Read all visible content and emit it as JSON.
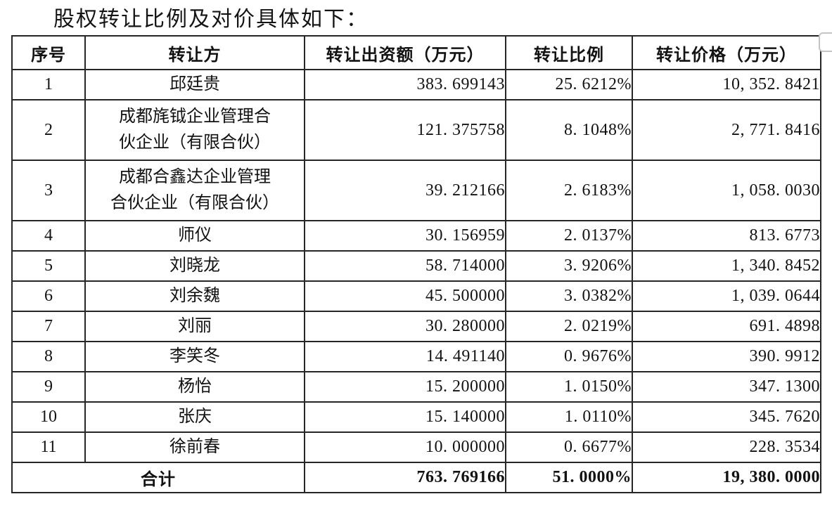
{
  "title": "股权转让比例及对价具体如下：",
  "table": {
    "columns": [
      "序号",
      "转让方",
      "转让出资额（万元）",
      "转让比例",
      "转让价格（万元）"
    ],
    "rows": [
      {
        "no": "1",
        "transferor": "邱廷贵",
        "amount": "383. 699143",
        "ratio": "25. 6212%",
        "price": "10, 352. 8421"
      },
      {
        "no": "2",
        "transferor": "成都旄钺企业管理合\n伙企业（有限合伙）",
        "amount": "121. 375758",
        "ratio": "8. 1048%",
        "price": "2, 771. 8416"
      },
      {
        "no": "3",
        "transferor": "成都合鑫达企业管理\n合伙企业（有限合伙）",
        "amount": "39. 212166",
        "ratio": "2. 6183%",
        "price": "1, 058. 0030"
      },
      {
        "no": "4",
        "transferor": "师仪",
        "amount": "30. 156959",
        "ratio": "2. 0137%",
        "price": "813. 6773"
      },
      {
        "no": "5",
        "transferor": "刘晓龙",
        "amount": "58. 714000",
        "ratio": "3. 9206%",
        "price": "1, 340. 8452"
      },
      {
        "no": "6",
        "transferor": "刘余魏",
        "amount": "45. 500000",
        "ratio": "3. 0382%",
        "price": "1, 039. 0644"
      },
      {
        "no": "7",
        "transferor": "刘丽",
        "amount": "30. 280000",
        "ratio": "2. 0219%",
        "price": "691. 4898"
      },
      {
        "no": "8",
        "transferor": "李笑冬",
        "amount": "14. 491140",
        "ratio": "0. 9676%",
        "price": "390. 9912"
      },
      {
        "no": "9",
        "transferor": "杨怡",
        "amount": "15. 200000",
        "ratio": "1. 0150%",
        "price": "347. 1300"
      },
      {
        "no": "10",
        "transferor": "张庆",
        "amount": "15. 140000",
        "ratio": "1. 0110%",
        "price": "345. 7620"
      },
      {
        "no": "11",
        "transferor": "徐前春",
        "amount": "10. 000000",
        "ratio": "0. 6677%",
        "price": "228. 3534"
      }
    ],
    "total": {
      "label": "合计",
      "amount": "763. 769166",
      "ratio": "51. 0000%",
      "price": "19, 380. 0000"
    }
  },
  "colors": {
    "border": "#262626",
    "text": "#121212"
  }
}
